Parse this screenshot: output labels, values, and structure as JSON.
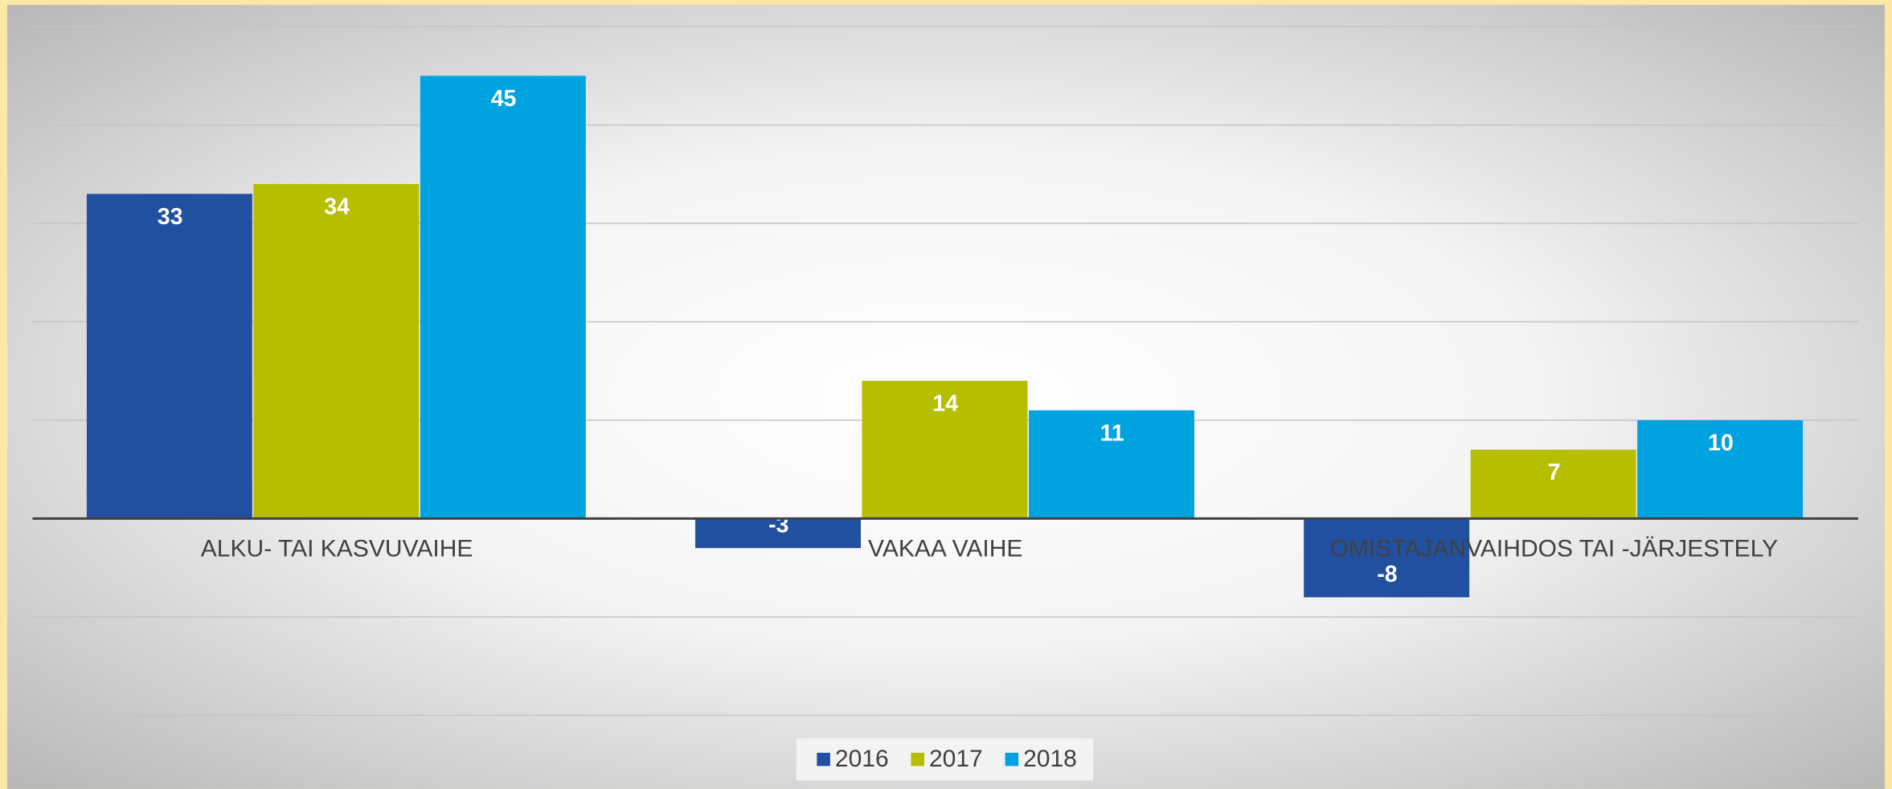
{
  "chart_data": {
    "type": "bar",
    "categories": [
      "ALKU- TAI KASVUVAIHE",
      "VAKAA VAIHE",
      "OMISTAJANVAIHDOS TAI -JÄRJESTELY"
    ],
    "series": [
      {
        "name": "2016",
        "color": "#2150a0",
        "values": [
          33,
          -3,
          -8
        ]
      },
      {
        "name": "2017",
        "color": "#b6be00",
        "values": [
          34,
          14,
          7
        ]
      },
      {
        "name": "2018",
        "color": "#00a3e0",
        "values": [
          45,
          11,
          10
        ]
      }
    ],
    "ylim": [
      -20,
      50
    ],
    "yticks": [
      -20,
      -10,
      0,
      10,
      20,
      30,
      40,
      50
    ],
    "grid": true,
    "legend": "bottom"
  }
}
